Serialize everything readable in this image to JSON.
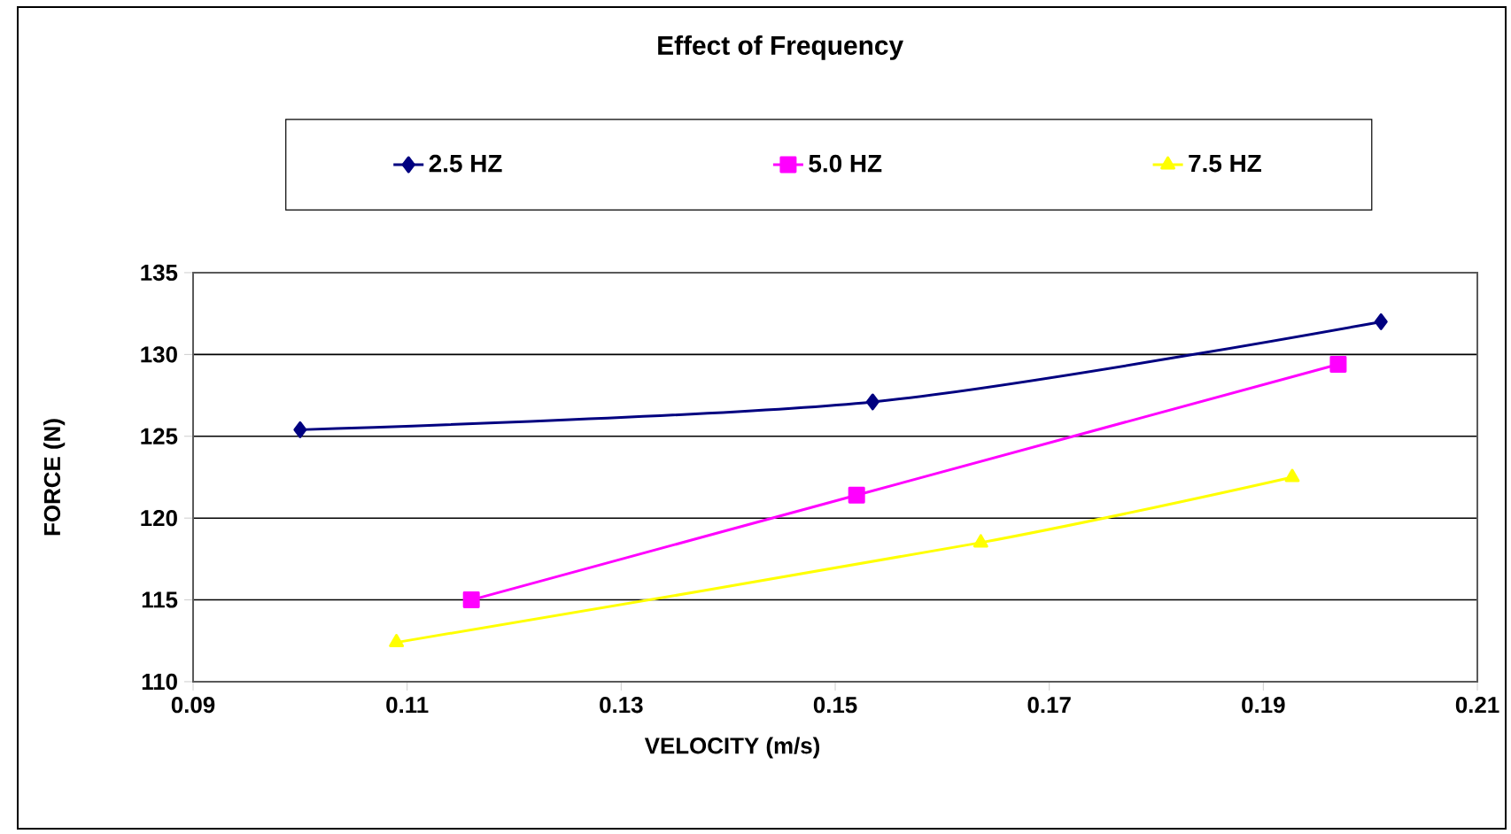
{
  "chart_data": {
    "type": "line",
    "title": "Effect of Frequency",
    "xlabel": "VELOCITY (m/s)",
    "ylabel": "FORCE (N)",
    "series": [
      {
        "name": "2.5 HZ",
        "color": "#000080",
        "marker": "diamond",
        "x": [
          0.1,
          0.1535,
          0.201
        ],
        "values": [
          125.4,
          127.1,
          132.0
        ]
      },
      {
        "name": "5.0 HZ",
        "color": "#ff00ff",
        "marker": "square",
        "x": [
          0.116,
          0.152,
          0.197
        ],
        "values": [
          115.0,
          121.4,
          129.4
        ]
      },
      {
        "name": "7.5 HZ",
        "color": "#ffff00",
        "marker": "triangle",
        "x": [
          0.109,
          0.1636,
          0.1927
        ],
        "values": [
          112.4,
          118.5,
          122.5
        ]
      }
    ],
    "xlim": [
      0.09,
      0.21
    ],
    "xticks": [
      0.09,
      0.11,
      0.13,
      0.15,
      0.17,
      0.19,
      0.21
    ],
    "ylim": [
      110,
      135
    ],
    "yticks": [
      110,
      115,
      120,
      125,
      130,
      135
    ],
    "grid": "y",
    "legend": "top",
    "line_style": "solid"
  }
}
